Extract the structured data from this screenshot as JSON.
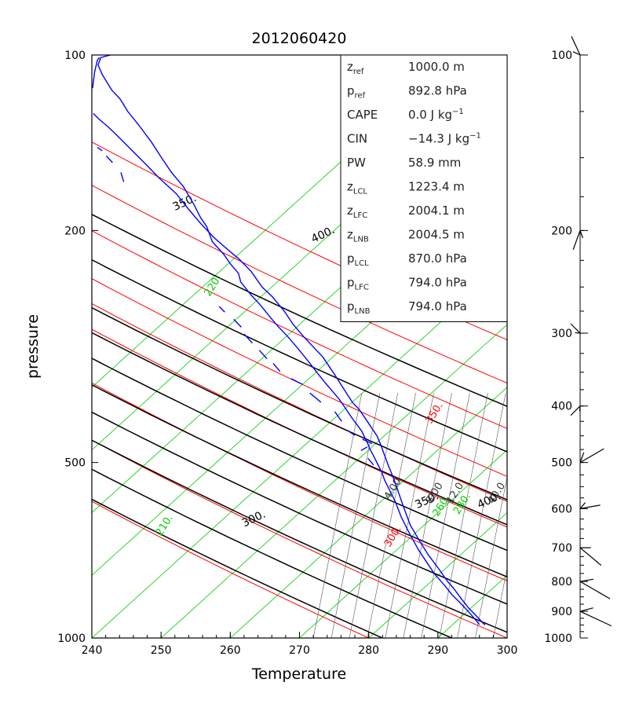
{
  "chart_data": {
    "type": "line",
    "title": "2012060420",
    "xlabel": "Temperature",
    "ylabel": "pressure",
    "xlim": [
      240,
      300
    ],
    "ylim": [
      1000,
      100
    ],
    "xticks": [
      240,
      250,
      260,
      270,
      280,
      290,
      300
    ],
    "yticks": [
      100,
      200,
      500,
      1000
    ],
    "yscale": "log",
    "colors": {
      "frame": "#000000",
      "adiabat": "#ff0000",
      "isotherm": "#00cc00",
      "theta_e": "#000000",
      "mixing_ratio": "#555555",
      "sounding": "#0000ff"
    },
    "reference_lines": {
      "dry_adiabats": [
        {
          "theta": 280,
          "label": ""
        },
        {
          "theta": 300,
          "label": "300."
        },
        {
          "theta": 320,
          "label": ""
        },
        {
          "theta": 340,
          "label": ""
        },
        {
          "theta": 350,
          "label": "350."
        },
        {
          "theta": 360,
          "label": ""
        },
        {
          "theta": 380,
          "label": ""
        },
        {
          "theta": 400,
          "label": "400."
        },
        {
          "theta": 420,
          "label": ""
        }
      ],
      "isotherms": [
        {
          "t": 200,
          "label": ""
        },
        {
          "t": 210,
          "label": "210."
        },
        {
          "t": 220,
          "label": "220."
        },
        {
          "t": 230,
          "label": ""
        },
        {
          "t": 240,
          "label": "240."
        },
        {
          "t": 250,
          "label": ""
        },
        {
          "t": 260,
          "label": "260."
        },
        {
          "t": 270,
          "label": ""
        },
        {
          "t": 280,
          "label": "280."
        },
        {
          "t": 290,
          "label": ""
        }
      ],
      "theta_e_labels": [
        "300.",
        "350.",
        "350.",
        "400.",
        "400."
      ],
      "mixing_ratio": [
        {
          "w": 1,
          "label": ""
        },
        {
          "w": 2,
          "label": ""
        },
        {
          "w": 4,
          "label": "4.00"
        },
        {
          "w": 8,
          "label": "8.00"
        },
        {
          "w": 12,
          "label": "12.0"
        },
        {
          "w": 16,
          "label": ""
        },
        {
          "w": 20,
          "label": ""
        },
        {
          "w": 24,
          "label": ""
        },
        {
          "w": 28,
          "label": ""
        },
        {
          "w": 32,
          "label": ""
        },
        {
          "w": 40,
          "label": "40.0"
        }
      ]
    },
    "series": [
      {
        "name": "sounding_profile_1",
        "points": [
          [
            296.8,
            950
          ],
          [
            295.5,
            915
          ],
          [
            294.5,
            890
          ],
          [
            293.5,
            860
          ],
          [
            292.2,
            820
          ],
          [
            291.4,
            800
          ],
          [
            290.1,
            760
          ],
          [
            288.6,
            720
          ],
          [
            287.3,
            680
          ],
          [
            286.0,
            640
          ],
          [
            284.9,
            590
          ],
          [
            283.9,
            545
          ],
          [
            283.4,
            525
          ],
          [
            282.8,
            505
          ],
          [
            281.7,
            465
          ],
          [
            281.2,
            450
          ],
          [
            279.8,
            425
          ],
          [
            278.6,
            405
          ],
          [
            277.7,
            395
          ],
          [
            276.9,
            382
          ],
          [
            275.2,
            355
          ],
          [
            273.4,
            330
          ],
          [
            271.8,
            315
          ],
          [
            270.7,
            305
          ],
          [
            269.1,
            290
          ],
          [
            267.8,
            275
          ],
          [
            266.1,
            260
          ],
          [
            264.6,
            250
          ],
          [
            263.0,
            235
          ],
          [
            261.3,
            224
          ],
          [
            259.9,
            217
          ],
          [
            257.7,
            206
          ],
          [
            255.8,
            195
          ],
          [
            254.0,
            184
          ],
          [
            252.2,
            173
          ],
          [
            249.6,
            162
          ],
          [
            247.8,
            154
          ],
          [
            246.6,
            149
          ],
          [
            245.1,
            143
          ],
          [
            243.8,
            138
          ],
          [
            242.4,
            133
          ],
          [
            241.1,
            129
          ],
          [
            240.2,
            126
          ]
        ]
      },
      {
        "name": "sounding_profile_2",
        "points": [
          [
            296.0,
            948
          ],
          [
            294.8,
            912
          ],
          [
            293.8,
            885
          ],
          [
            293.0,
            865
          ],
          [
            292.0,
            842
          ],
          [
            291.0,
            813
          ],
          [
            289.5,
            776
          ],
          [
            288.4,
            742
          ],
          [
            287.2,
            706
          ],
          [
            285.9,
            662
          ],
          [
            284.7,
            620
          ],
          [
            283.8,
            582
          ],
          [
            283.0,
            557
          ],
          [
            282.3,
            536
          ],
          [
            281.9,
            520
          ],
          [
            281.4,
            506
          ],
          [
            280.7,
            487
          ],
          [
            280.1,
            472
          ],
          [
            279.9,
            465
          ],
          [
            279.0,
            442
          ],
          [
            277.5,
            418
          ],
          [
            276.3,
            398
          ],
          [
            275.7,
            389
          ],
          [
            273.8,
            366
          ],
          [
            272.4,
            349
          ],
          [
            271.6,
            339
          ],
          [
            269.9,
            320
          ],
          [
            268.3,
            304
          ],
          [
            267.0,
            293
          ],
          [
            265.9,
            283
          ],
          [
            264.3,
            268
          ],
          [
            263.0,
            258
          ],
          [
            261.5,
            245
          ],
          [
            261.2,
            237
          ],
          [
            260.0,
            228
          ],
          [
            259.1,
            220
          ],
          [
            257.4,
            209
          ],
          [
            256.6,
            197
          ],
          [
            255.7,
            190
          ],
          [
            254.7,
            180
          ],
          [
            253.2,
            168
          ],
          [
            251.5,
            159
          ],
          [
            249.9,
            149
          ],
          [
            248.6,
            141
          ],
          [
            246.8,
            132
          ],
          [
            245.2,
            125
          ],
          [
            244.1,
            119
          ],
          [
            242.9,
            115
          ],
          [
            241.5,
            108
          ],
          [
            240.9,
            104
          ],
          [
            241.3,
            101
          ],
          [
            242.7,
            100
          ]
        ]
      },
      {
        "name": "sounding_profile_3",
        "points": [
          [
            240.1,
            114
          ],
          [
            240.4,
            107
          ],
          [
            240.8,
            102
          ],
          [
            241.1,
            101
          ]
        ]
      }
    ],
    "segmented_series": [
      {
        "name": "sounding_segment_b",
        "points": [
          [
            280.7,
            505
          ],
          [
            279.9,
            492
          ],
          [
            278.9,
            477
          ],
          [
            279.8,
            470
          ],
          [
            280.5,
            464
          ],
          [
            279.1,
            456
          ],
          [
            278.0,
            449
          ],
          [
            277.0,
            441
          ],
          [
            276.1,
            425
          ],
          [
            275.1,
            409
          ],
          [
            273.1,
            394
          ],
          [
            271.5,
            380
          ],
          [
            270.4,
            367
          ],
          [
            268.8,
            359
          ],
          [
            267.2,
            349
          ],
          [
            266.2,
            338
          ],
          [
            265.3,
            332
          ],
          [
            264.2,
            321
          ],
          [
            263.2,
            312
          ],
          [
            262.0,
            301
          ],
          [
            261.6,
            293
          ],
          [
            260.5,
            284
          ],
          [
            259.2,
            276
          ],
          [
            258.4,
            270
          ],
          [
            257.4,
            264
          ]
        ]
      },
      {
        "name": "sounding_segment_c",
        "points": [
          [
            244.6,
            165
          ],
          [
            244.2,
            159
          ],
          [
            243.0,
            153
          ],
          [
            242.1,
            149
          ],
          [
            241.5,
            146
          ],
          [
            240.8,
            144
          ]
        ]
      }
    ],
    "info_panel": [
      {
        "sym": "z",
        "sub": "ref",
        "value": "1000.0 m"
      },
      {
        "sym": "p",
        "sub": "ref",
        "value": "892.8 hPa"
      },
      {
        "sym": "CAPE",
        "sub": "",
        "value": "0.0 J kg",
        "sup": "−1"
      },
      {
        "sym": "CIN",
        "sub": "",
        "value": "−14.3 J kg",
        "sup": "−1"
      },
      {
        "sym": "PW",
        "sub": "",
        "value": "58.9 mm"
      },
      {
        "sym": "z",
        "sub": "LCL",
        "value": "1223.4 m"
      },
      {
        "sym": "z",
        "sub": "LFC",
        "value": "2004.1 m"
      },
      {
        "sym": "z",
        "sub": "LNB",
        "value": "2004.5 m"
      },
      {
        "sym": "p",
        "sub": "LCL",
        "value": "870.0 hPa"
      },
      {
        "sym": "p",
        "sub": "LFC",
        "value": "794.0 hPa"
      },
      {
        "sym": "p",
        "sub": "LNB",
        "value": "794.0 hPa"
      }
    ],
    "wind_profile": {
      "tick_labels": [
        "100",
        "200",
        "300",
        "400",
        "500",
        "600",
        "700",
        "800",
        "900",
        "1000"
      ],
      "barbs": [
        {
          "p": 100,
          "dir": 335,
          "speed": 10
        },
        {
          "p": 200,
          "dir": 200,
          "speed": 10
        },
        {
          "p": 300,
          "dir": 315,
          "speed": 5
        },
        {
          "p": 400,
          "dir": 225,
          "speed": 5
        },
        {
          "p": 500,
          "dir": 60,
          "speed": 15
        },
        {
          "p": 600,
          "dir": 80,
          "speed": 10
        },
        {
          "p": 700,
          "dir": 130,
          "speed": 15
        },
        {
          "p": 800,
          "dir": 120,
          "speed": 20
        },
        {
          "p": 900,
          "dir": 115,
          "speed": 20
        }
      ]
    }
  }
}
